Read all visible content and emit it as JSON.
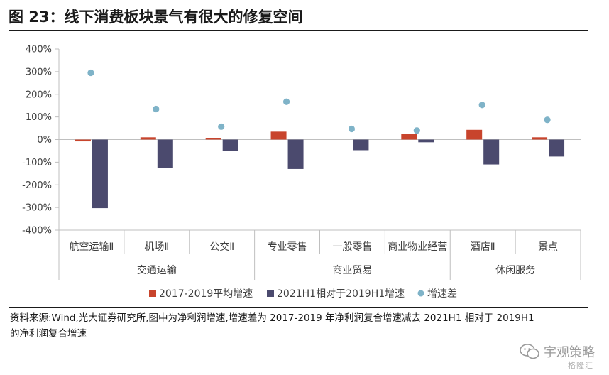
{
  "header": {
    "title": "图 23：线下消费板块景气有很大的修复空间"
  },
  "footer": {
    "source_line1": "资料来源:Wind,光大证券研究所,图中为净利润增速,增速差为 2017-2019 年净利润复合增速减去 2021H1 相对于 2019H1",
    "source_line2": "的净利润复合增速"
  },
  "watermark": {
    "text": "宇观策略",
    "subtext": "格隆汇"
  },
  "colors": {
    "series1": "#c8442c",
    "series2": "#4b4a6e",
    "series3": "#7fb3c8",
    "axis": "#bfbfbf"
  },
  "chart_data": {
    "type": "bar",
    "categories": [
      "航空运输Ⅱ",
      "机场Ⅱ",
      "公交Ⅱ",
      "专业零售",
      "一般零售",
      "商业物业经营",
      "酒店Ⅱ",
      "景点"
    ],
    "groups": [
      {
        "label": "交通运输",
        "span": [
          0,
          2
        ]
      },
      {
        "label": "商业贸易",
        "span": [
          3,
          5
        ]
      },
      {
        "label": "休闲服务",
        "span": [
          6,
          7
        ]
      }
    ],
    "series": [
      {
        "name": "2017-2019平均增速",
        "kind": "bar",
        "values": [
          -8,
          10,
          5,
          35,
          0,
          26,
          43,
          10
        ]
      },
      {
        "name": "2021H1相对于2019H1增速",
        "kind": "bar",
        "values": [
          -303,
          -125,
          -50,
          -130,
          -47,
          -12,
          -110,
          -75
        ]
      },
      {
        "name": "增速差",
        "kind": "scatter",
        "values": [
          295,
          135,
          57,
          167,
          47,
          40,
          153,
          87
        ]
      }
    ],
    "yticks": [
      "400%",
      "300%",
      "200%",
      "100%",
      "0%",
      "-100%",
      "-200%",
      "-300%",
      "-400%"
    ],
    "ylim": [
      -400,
      400
    ],
    "legend_position": "bottom",
    "grid": false
  }
}
